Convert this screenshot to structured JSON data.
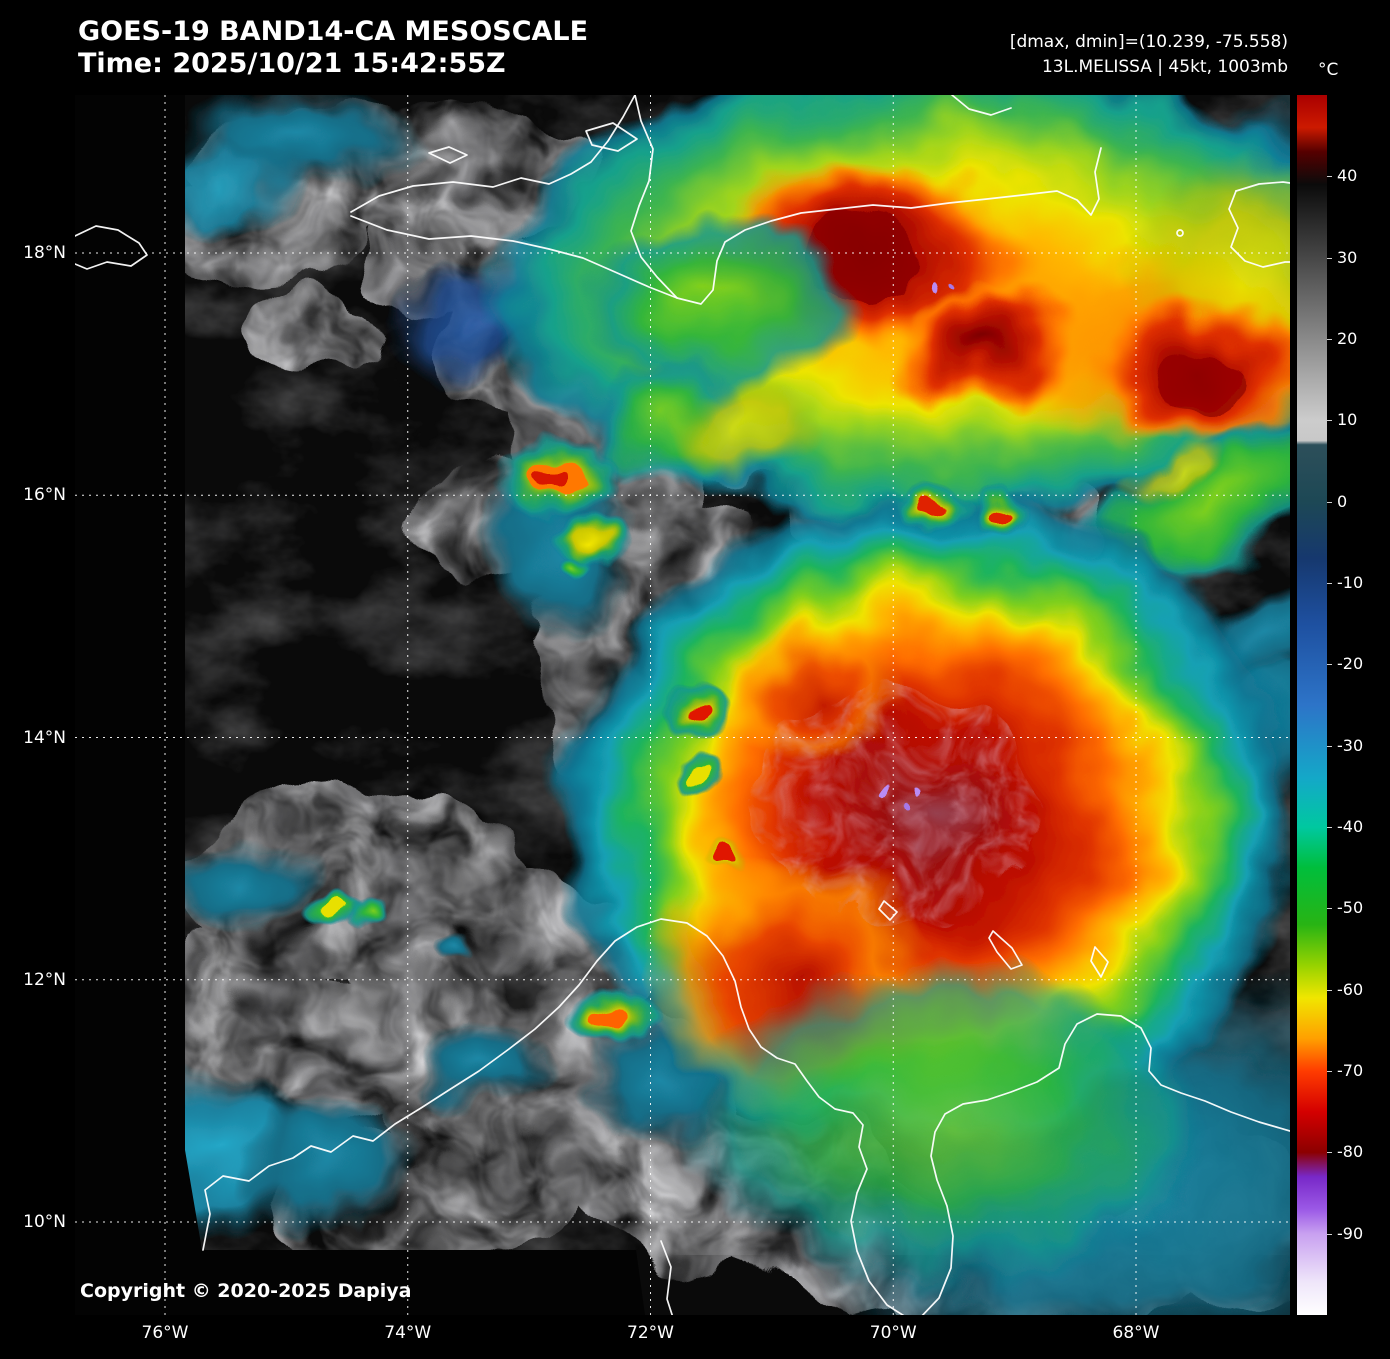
{
  "header": {
    "title": "GOES-19 BAND14-CA MESOSCALE",
    "time_line": "Time: 2025/10/21 15:42:55Z",
    "dmax_dmin": "[dmax, dmin]=(10.239, -75.558)",
    "storm_line": "13L.MELISSA | 45kt, 1003mb"
  },
  "colorbar": {
    "unit_label": "°C",
    "value_max": 50,
    "value_min": -100,
    "ticks": [
      {
        "label": "40",
        "value": 40
      },
      {
        "label": "30",
        "value": 30
      },
      {
        "label": "20",
        "value": 20
      },
      {
        "label": "10",
        "value": 10
      },
      {
        "label": "0",
        "value": 0
      },
      {
        "label": "-10",
        "value": -10
      },
      {
        "label": "-20",
        "value": -20
      },
      {
        "label": "-30",
        "value": -30
      },
      {
        "label": "-40",
        "value": -40
      },
      {
        "label": "-50",
        "value": -50
      },
      {
        "label": "-60",
        "value": -60
      },
      {
        "label": "-70",
        "value": -70
      },
      {
        "label": "-80",
        "value": -80
      },
      {
        "label": "-90",
        "value": -90
      }
    ],
    "gradient_stops": [
      {
        "t": 50,
        "color": "#aa0000"
      },
      {
        "t": 46,
        "color": "#cc1a00"
      },
      {
        "t": 43,
        "color": "#550000"
      },
      {
        "t": 39,
        "color": "#0b0b0b"
      },
      {
        "t": 10,
        "color": "#cccccc"
      },
      {
        "t": 7.5,
        "color": "#c8c8c8"
      },
      {
        "t": 7,
        "color": "#2d4f5a"
      },
      {
        "t": 0,
        "color": "#1d4855"
      },
      {
        "t": -7,
        "color": "#16386e"
      },
      {
        "t": -15,
        "color": "#1e50a0"
      },
      {
        "t": -25,
        "color": "#2d74c8"
      },
      {
        "t": -34,
        "color": "#14a8c8"
      },
      {
        "t": -40,
        "color": "#00c8a0"
      },
      {
        "t": -45,
        "color": "#00be3c"
      },
      {
        "t": -52,
        "color": "#28b414"
      },
      {
        "t": -57,
        "color": "#96d200"
      },
      {
        "t": -61,
        "color": "#f0e600"
      },
      {
        "t": -66,
        "color": "#ffa000"
      },
      {
        "t": -70,
        "color": "#ff3c00"
      },
      {
        "t": -75,
        "color": "#d40000"
      },
      {
        "t": -80,
        "color": "#8c0000"
      },
      {
        "t": -83,
        "color": "#7828c8"
      },
      {
        "t": -87,
        "color": "#9b59e6"
      },
      {
        "t": -90,
        "color": "#c8a0f0"
      },
      {
        "t": -96,
        "color": "#efe6fa"
      },
      {
        "t": -100,
        "color": "#ffffff"
      }
    ]
  },
  "axes": {
    "lat_ticks": [
      {
        "label": "18°N",
        "deg": 18
      },
      {
        "label": "16°N",
        "deg": 16
      },
      {
        "label": "14°N",
        "deg": 14
      },
      {
        "label": "12°N",
        "deg": 12
      },
      {
        "label": "10°N",
        "deg": 10
      }
    ],
    "lon_ticks": [
      {
        "label": "76°W",
        "deg": 76
      },
      {
        "label": "74°W",
        "deg": 74
      },
      {
        "label": "72°W",
        "deg": 72
      },
      {
        "label": "70°W",
        "deg": 70
      },
      {
        "label": "68°W",
        "deg": 68
      }
    ]
  },
  "footer": {
    "copyright": "Copyright © 2020-2025 Dapiya"
  }
}
